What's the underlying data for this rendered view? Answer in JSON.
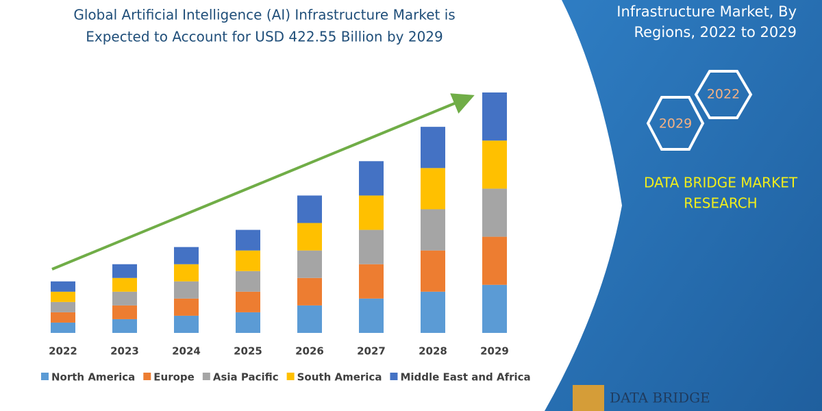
{
  "chart_data": {
    "type": "bar",
    "stacked": true,
    "title": [
      "Global Artificial Intelligence (AI) Infrastructure Market is",
      "Expected to Account for USD 422.55 Billion by 2029"
    ],
    "categories": [
      "2022",
      "2023",
      "2024",
      "2025",
      "2026",
      "2027",
      "2028",
      "2029"
    ],
    "series": [
      {
        "name": "North America",
        "color": "#5b9bd5",
        "values": [
          15,
          20,
          25,
          30,
          40,
          50,
          60,
          70
        ]
      },
      {
        "name": "Europe",
        "color": "#ed7d31",
        "values": [
          15,
          20,
          25,
          30,
          40,
          50,
          60,
          70
        ]
      },
      {
        "name": "Asia Pacific",
        "color": "#a5a5a5",
        "values": [
          15,
          20,
          25,
          30,
          40,
          50,
          60,
          70
        ]
      },
      {
        "name": "South America",
        "color": "#ffc000",
        "values": [
          15,
          20,
          25,
          30,
          40,
          50,
          60,
          70
        ]
      },
      {
        "name": "Middle East and Africa",
        "color": "#4472c4",
        "values": [
          15,
          20,
          25,
          30,
          40,
          50,
          60,
          70
        ]
      }
    ]
  },
  "panel": {
    "heading": [
      "Infrastructure Market, By",
      "Regions, 2022 to 2029"
    ],
    "hexagons": [
      "2022",
      "2029"
    ],
    "brand": [
      "DATA BRIDGE MARKET",
      "RESEARCH"
    ],
    "logo": "DATA BRIDGE"
  }
}
